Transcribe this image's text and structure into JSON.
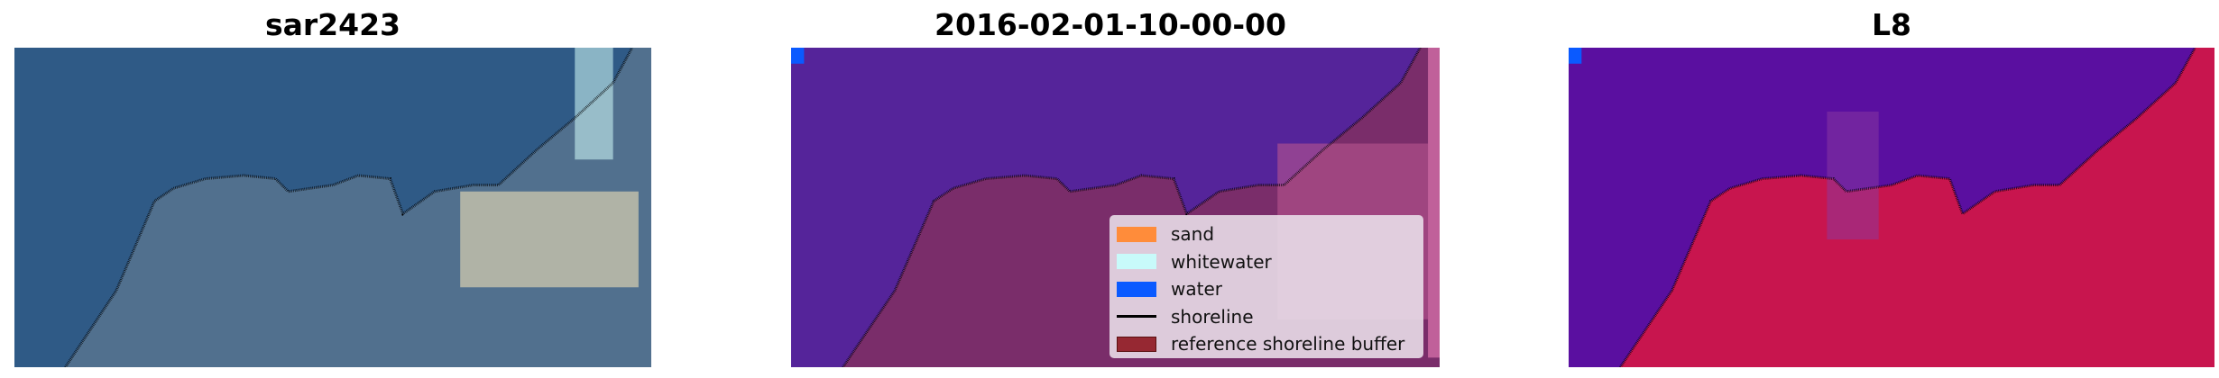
{
  "panels": [
    {
      "title": "sar2423",
      "water_color": "#2f5a86",
      "land_color": "#51708e"
    },
    {
      "title": "2016-02-01-10-00-00",
      "water_color": "#55249a",
      "land_color": "#7a2d6a"
    },
    {
      "title": "L8",
      "water_color": "#5a0fa0",
      "land_color": "#c8154e"
    }
  ],
  "legend": {
    "items": [
      {
        "label": "sand",
        "color": "#ff8c3a",
        "kind": "patch"
      },
      {
        "label": "whitewater",
        "color": "#c8fafa",
        "kind": "patch"
      },
      {
        "label": "water",
        "color": "#0a5aff",
        "kind": "patch"
      },
      {
        "label": "shoreline",
        "color": "#000000",
        "kind": "line"
      },
      {
        "label": "reference shoreline buffer",
        "color": "#962832",
        "kind": "patch"
      }
    ]
  }
}
